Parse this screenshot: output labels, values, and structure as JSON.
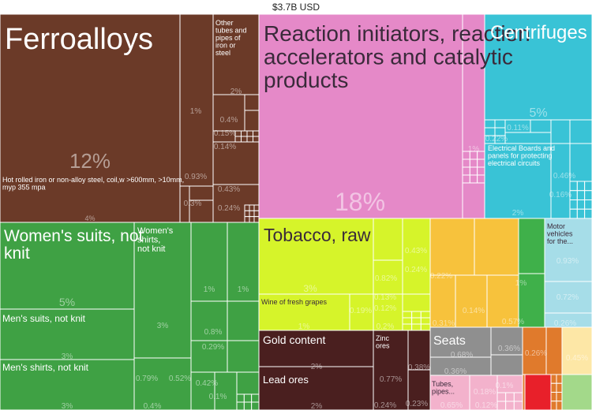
{
  "chart_data": {
    "type": "treemap",
    "title": "$3.7B USD",
    "items": [
      {
        "name": "Ferroalloys",
        "percent": "12%",
        "group": "metals",
        "color": "#6b3a28"
      },
      {
        "name": "Hot rolled iron or non-alloy steel, coil,w >600mm, >10mm, myp 355 mpa",
        "percent": "4%",
        "group": "metals",
        "color": "#6b3a28"
      },
      {
        "name": "Other tubes and pipes of iron or steel",
        "percent": "2%",
        "group": "metals",
        "color": "#6b3a28"
      },
      {
        "name": "",
        "percent": "1%",
        "group": "metals",
        "color": "#6b3a28"
      },
      {
        "name": "",
        "percent": "0.93%",
        "group": "metals",
        "color": "#6b3a28"
      },
      {
        "name": "",
        "percent": "0.3%",
        "group": "metals",
        "color": "#6b3a28"
      },
      {
        "name": "",
        "percent": "0.4%",
        "group": "metals",
        "color": "#6b3a28"
      },
      {
        "name": "",
        "percent": "0.15%",
        "group": "metals",
        "color": "#6b3a28"
      },
      {
        "name": "",
        "percent": "0.14%",
        "group": "metals",
        "color": "#6b3a28"
      },
      {
        "name": "",
        "percent": "0.43%",
        "group": "metals",
        "color": "#6b3a28"
      },
      {
        "name": "",
        "percent": "0.24%",
        "group": "metals",
        "color": "#6b3a28"
      },
      {
        "name": "Reaction initiators, reaction accelerators and catalytic products",
        "percent": "18%",
        "group": "chemicals",
        "color": "#e589c8"
      },
      {
        "name": "",
        "percent": "1%",
        "group": "chemicals",
        "color": "#e589c8"
      },
      {
        "name": "Centrifuges",
        "percent": "5%",
        "group": "machinery",
        "color": "#39c3d6"
      },
      {
        "name": "Electrical Boards and panels for protecting electrical circuits",
        "percent": "2%",
        "group": "machinery",
        "color": "#39c3d6"
      },
      {
        "name": "",
        "percent": "0.11%",
        "group": "machinery",
        "color": "#39c3d6"
      },
      {
        "name": "",
        "percent": "0.22%",
        "group": "machinery",
        "color": "#39c3d6"
      },
      {
        "name": "",
        "percent": "0.46%",
        "group": "machinery",
        "color": "#39c3d6"
      },
      {
        "name": "",
        "percent": "0.16%",
        "group": "machinery",
        "color": "#39c3d6"
      },
      {
        "name": "Women's suits, not knit",
        "percent": "5%",
        "group": "textiles",
        "color": "#3fa144"
      },
      {
        "name": "Men's suits, not knit",
        "percent": "3%",
        "group": "textiles",
        "color": "#3fa144"
      },
      {
        "name": "Men's shirts, not knit",
        "percent": "3%",
        "group": "textiles",
        "color": "#3fa144"
      },
      {
        "name": "Women's shirts, not knit",
        "percent": "3%",
        "group": "textiles",
        "color": "#3fa144"
      },
      {
        "name": "",
        "percent": "0.79%",
        "group": "textiles",
        "color": "#3fa144"
      },
      {
        "name": "",
        "percent": "0.52%",
        "group": "textiles",
        "color": "#3fa144"
      },
      {
        "name": "",
        "percent": "0.4%",
        "group": "textiles",
        "color": "#3fa144"
      },
      {
        "name": "",
        "percent": "1%",
        "group": "textiles",
        "color": "#3fa144"
      },
      {
        "name": "",
        "percent": "1%",
        "group": "textiles",
        "color": "#3fa144"
      },
      {
        "name": "",
        "percent": "0.8%",
        "group": "textiles",
        "color": "#3fa144"
      },
      {
        "name": "",
        "percent": "0.29%",
        "group": "textiles",
        "color": "#3fa144"
      },
      {
        "name": "",
        "percent": "0.42%",
        "group": "textiles",
        "color": "#3fa144"
      },
      {
        "name": "",
        "percent": "0.1%",
        "group": "textiles",
        "color": "#3fa144"
      },
      {
        "name": "Tobacco, raw",
        "percent": "3%",
        "group": "vegetable",
        "color": "#d6f42a"
      },
      {
        "name": "Wine of fresh grapes",
        "percent": "1%",
        "group": "vegetable",
        "color": "#d6f42a"
      },
      {
        "name": "",
        "percent": "0.19%",
        "group": "vegetable",
        "color": "#d6f42a"
      },
      {
        "name": "",
        "percent": "0.43%",
        "group": "vegetable",
        "color": "#d6f42a"
      },
      {
        "name": "",
        "percent": "0.82%",
        "group": "vegetable",
        "color": "#d6f42a"
      },
      {
        "name": "",
        "percent": "0.24%",
        "group": "vegetable",
        "color": "#d6f42a"
      },
      {
        "name": "",
        "percent": "0.13%",
        "group": "vegetable",
        "color": "#d6f42a"
      },
      {
        "name": "",
        "percent": "0.12%",
        "group": "vegetable",
        "color": "#d6f42a"
      },
      {
        "name": "",
        "percent": "0.2%",
        "group": "vegetable",
        "color": "#d6f42a"
      },
      {
        "name": "",
        "percent": "0.22%",
        "group": "food",
        "color": "#f7c23c"
      },
      {
        "name": "",
        "percent": "0.31%",
        "group": "food",
        "color": "#f7c23c"
      },
      {
        "name": "",
        "percent": "0.14%",
        "group": "food",
        "color": "#f7c23c"
      },
      {
        "name": "",
        "percent": "1%",
        "group": "animal",
        "color": "#3fb04a"
      },
      {
        "name": "",
        "percent": "0.57%",
        "group": "animal",
        "color": "#3fb04a"
      },
      {
        "name": "Motor vehicles for the...",
        "percent": "0.93%",
        "group": "transport",
        "color": "#a6dde8"
      },
      {
        "name": "",
        "percent": "0.72%",
        "group": "transport",
        "color": "#a6dde8"
      },
      {
        "name": "",
        "percent": "0.26%",
        "group": "transport",
        "color": "#a6dde8"
      },
      {
        "name": "Gold content",
        "percent": "2%",
        "group": "minerals",
        "color": "#4a1f1f"
      },
      {
        "name": "Lead ores",
        "percent": "2%",
        "group": "minerals",
        "color": "#4a1f1f"
      },
      {
        "name": "Zinc ores",
        "percent": "0.77%",
        "group": "minerals",
        "color": "#4a1f1f"
      },
      {
        "name": "",
        "percent": "0.38%",
        "group": "minerals",
        "color": "#4a1f1f"
      },
      {
        "name": "",
        "percent": "0.24%",
        "group": "minerals",
        "color": "#4a1f1f"
      },
      {
        "name": "",
        "percent": "0.23%",
        "group": "minerals",
        "color": "#4a1f1f"
      },
      {
        "name": "Seats",
        "percent": "0.68%",
        "group": "misc",
        "color": "#8f8f8f"
      },
      {
        "name": "",
        "percent": "0.36%",
        "group": "misc",
        "color": "#8f8f8f"
      },
      {
        "name": "",
        "percent": "0.36%",
        "group": "misc",
        "color": "#8f8f8f"
      },
      {
        "name": "Tubes, pipes...",
        "percent": "0.65%",
        "group": "plastics",
        "color": "#f3b2cc"
      },
      {
        "name": "",
        "percent": "0.18%",
        "group": "plastics",
        "color": "#f3b2cc"
      },
      {
        "name": "",
        "percent": "0.12%",
        "group": "plastics",
        "color": "#f3b2cc"
      },
      {
        "name": "",
        "percent": "0.1%",
        "group": "plastics",
        "color": "#f3b2cc"
      },
      {
        "name": "",
        "percent": "0.26%",
        "group": "stone",
        "color": "#e07a2c"
      },
      {
        "name": "",
        "percent": "0.45%",
        "group": "paper",
        "color": "#fde7a6"
      }
    ]
  }
}
